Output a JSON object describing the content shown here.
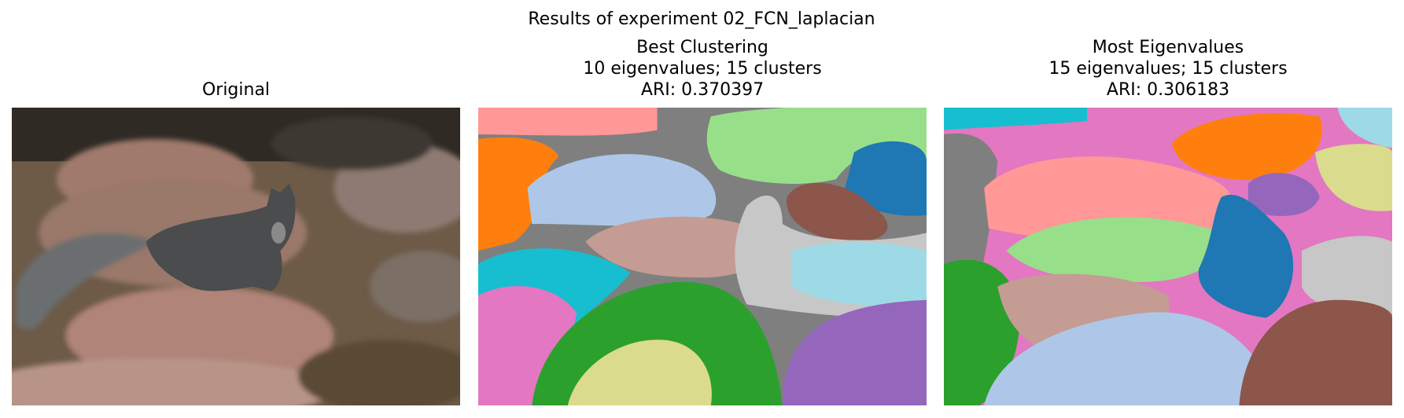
{
  "title": "Results of experiment 02_FCN_laplacian",
  "panels": [
    {
      "title_lines": [
        "Original"
      ]
    },
    {
      "title_lines": [
        "Best Clustering",
        "10 eigenvalues; 15 clusters",
        "ARI: 0.370397"
      ]
    },
    {
      "title_lines": [
        "Most Eigenvalues",
        "15 eigenvalues; 15 clusters",
        "ARI: 0.306183"
      ]
    }
  ]
}
